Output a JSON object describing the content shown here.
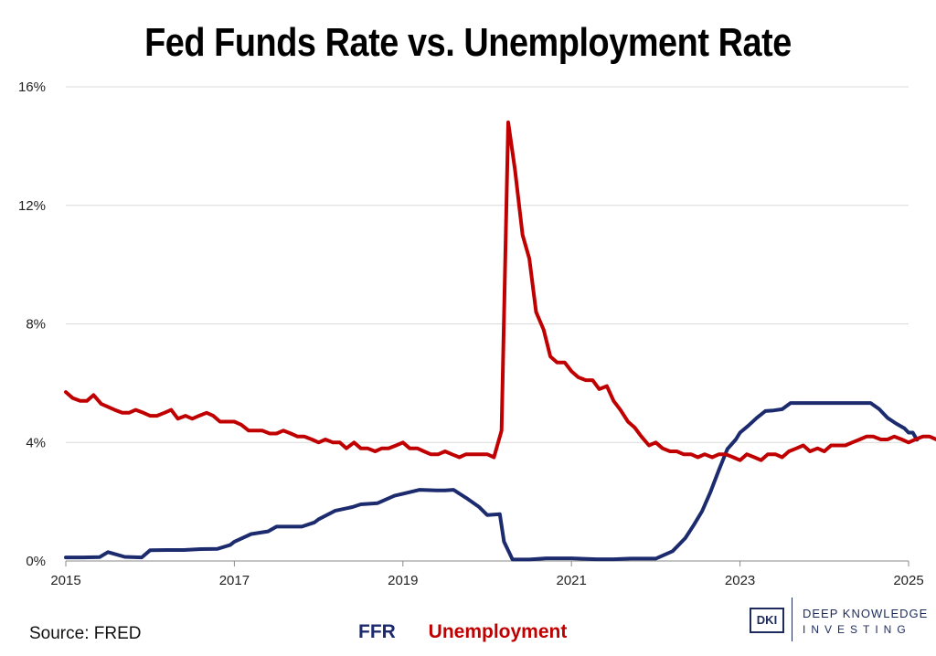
{
  "chart_data": {
    "type": "line",
    "title": "Fed Funds Rate vs. Unemployment Rate",
    "xlabel": "",
    "ylabel": "",
    "xlim": [
      2015,
      2025
    ],
    "ylim": [
      0,
      16
    ],
    "x_ticks": [
      2015,
      2017,
      2019,
      2021,
      2023,
      2025
    ],
    "y_ticks": [
      0,
      4,
      8,
      12,
      16
    ],
    "y_tick_labels": [
      "0%",
      "4%",
      "8%",
      "12%",
      "16%"
    ],
    "grid": "horizontal",
    "legend_position": "bottom-center",
    "series": [
      {
        "name": "FFR",
        "color": "#1c2a6e",
        "points": [
          [
            2015.0,
            0.12
          ],
          [
            2015.2,
            0.12
          ],
          [
            2015.4,
            0.13
          ],
          [
            2015.5,
            0.3
          ],
          [
            2015.7,
            0.14
          ],
          [
            2015.9,
            0.12
          ],
          [
            2016.0,
            0.36
          ],
          [
            2016.2,
            0.37
          ],
          [
            2016.4,
            0.37
          ],
          [
            2016.6,
            0.4
          ],
          [
            2016.8,
            0.41
          ],
          [
            2016.95,
            0.54
          ],
          [
            2017.0,
            0.65
          ],
          [
            2017.2,
            0.91
          ],
          [
            2017.4,
            1.0
          ],
          [
            2017.5,
            1.16
          ],
          [
            2017.8,
            1.16
          ],
          [
            2017.95,
            1.3
          ],
          [
            2018.0,
            1.41
          ],
          [
            2018.2,
            1.7
          ],
          [
            2018.4,
            1.82
          ],
          [
            2018.5,
            1.91
          ],
          [
            2018.7,
            1.95
          ],
          [
            2018.9,
            2.2
          ],
          [
            2019.0,
            2.27
          ],
          [
            2019.2,
            2.4
          ],
          [
            2019.4,
            2.38
          ],
          [
            2019.5,
            2.38
          ],
          [
            2019.6,
            2.4
          ],
          [
            2019.75,
            2.13
          ],
          [
            2019.9,
            1.83
          ],
          [
            2020.0,
            1.55
          ],
          [
            2020.15,
            1.58
          ],
          [
            2020.2,
            0.65
          ],
          [
            2020.3,
            0.05
          ],
          [
            2020.5,
            0.05
          ],
          [
            2020.7,
            0.09
          ],
          [
            2021.0,
            0.09
          ],
          [
            2021.3,
            0.06
          ],
          [
            2021.5,
            0.06
          ],
          [
            2021.7,
            0.08
          ],
          [
            2021.9,
            0.08
          ],
          [
            2022.0,
            0.08
          ],
          [
            2022.2,
            0.33
          ],
          [
            2022.35,
            0.77
          ],
          [
            2022.45,
            1.21
          ],
          [
            2022.55,
            1.68
          ],
          [
            2022.65,
            2.33
          ],
          [
            2022.75,
            3.08
          ],
          [
            2022.85,
            3.78
          ],
          [
            2022.95,
            4.1
          ],
          [
            2023.0,
            4.33
          ],
          [
            2023.1,
            4.57
          ],
          [
            2023.2,
            4.83
          ],
          [
            2023.3,
            5.06
          ],
          [
            2023.4,
            5.08
          ],
          [
            2023.5,
            5.12
          ],
          [
            2023.6,
            5.33
          ],
          [
            2023.8,
            5.33
          ],
          [
            2024.0,
            5.33
          ],
          [
            2024.2,
            5.33
          ],
          [
            2024.4,
            5.33
          ],
          [
            2024.55,
            5.33
          ],
          [
            2024.65,
            5.13
          ],
          [
            2024.75,
            4.83
          ],
          [
            2024.85,
            4.64
          ],
          [
            2024.95,
            4.48
          ],
          [
            2025.0,
            4.33
          ],
          [
            2025.05,
            4.33
          ],
          [
            2025.1,
            4.09
          ]
        ]
      },
      {
        "name": "Unemployment",
        "color": "#c00000",
        "points": [
          [
            2015.0,
            5.7
          ],
          [
            2015.08,
            5.5
          ],
          [
            2015.17,
            5.4
          ],
          [
            2015.25,
            5.4
          ],
          [
            2015.33,
            5.6
          ],
          [
            2015.42,
            5.3
          ],
          [
            2015.5,
            5.2
          ],
          [
            2015.58,
            5.1
          ],
          [
            2015.67,
            5.0
          ],
          [
            2015.75,
            5.0
          ],
          [
            2015.83,
            5.1
          ],
          [
            2015.92,
            5.0
          ],
          [
            2016.0,
            4.9
          ],
          [
            2016.08,
            4.9
          ],
          [
            2016.17,
            5.0
          ],
          [
            2016.25,
            5.1
          ],
          [
            2016.33,
            4.8
          ],
          [
            2016.42,
            4.9
          ],
          [
            2016.5,
            4.8
          ],
          [
            2016.58,
            4.9
          ],
          [
            2016.67,
            5.0
          ],
          [
            2016.75,
            4.9
          ],
          [
            2016.83,
            4.7
          ],
          [
            2016.92,
            4.7
          ],
          [
            2017.0,
            4.7
          ],
          [
            2017.08,
            4.6
          ],
          [
            2017.17,
            4.4
          ],
          [
            2017.25,
            4.4
          ],
          [
            2017.33,
            4.4
          ],
          [
            2017.42,
            4.3
          ],
          [
            2017.5,
            4.3
          ],
          [
            2017.58,
            4.4
          ],
          [
            2017.67,
            4.3
          ],
          [
            2017.75,
            4.2
          ],
          [
            2017.83,
            4.2
          ],
          [
            2017.92,
            4.1
          ],
          [
            2018.0,
            4.0
          ],
          [
            2018.08,
            4.1
          ],
          [
            2018.17,
            4.0
          ],
          [
            2018.25,
            4.0
          ],
          [
            2018.33,
            3.8
          ],
          [
            2018.42,
            4.0
          ],
          [
            2018.5,
            3.8
          ],
          [
            2018.58,
            3.8
          ],
          [
            2018.67,
            3.7
          ],
          [
            2018.75,
            3.8
          ],
          [
            2018.83,
            3.8
          ],
          [
            2018.92,
            3.9
          ],
          [
            2019.0,
            4.0
          ],
          [
            2019.08,
            3.8
          ],
          [
            2019.17,
            3.8
          ],
          [
            2019.25,
            3.7
          ],
          [
            2019.33,
            3.6
          ],
          [
            2019.42,
            3.6
          ],
          [
            2019.5,
            3.7
          ],
          [
            2019.58,
            3.6
          ],
          [
            2019.67,
            3.5
          ],
          [
            2019.75,
            3.6
          ],
          [
            2019.83,
            3.6
          ],
          [
            2019.92,
            3.6
          ],
          [
            2020.0,
            3.6
          ],
          [
            2020.08,
            3.5
          ],
          [
            2020.17,
            4.4
          ],
          [
            2020.25,
            14.8
          ],
          [
            2020.33,
            13.2
          ],
          [
            2020.42,
            11.0
          ],
          [
            2020.5,
            10.2
          ],
          [
            2020.58,
            8.4
          ],
          [
            2020.67,
            7.8
          ],
          [
            2020.75,
            6.9
          ],
          [
            2020.83,
            6.7
          ],
          [
            2020.92,
            6.7
          ],
          [
            2021.0,
            6.4
          ],
          [
            2021.08,
            6.2
          ],
          [
            2021.17,
            6.1
          ],
          [
            2021.25,
            6.1
          ],
          [
            2021.33,
            5.8
          ],
          [
            2021.42,
            5.9
          ],
          [
            2021.5,
            5.4
          ],
          [
            2021.58,
            5.1
          ],
          [
            2021.67,
            4.7
          ],
          [
            2021.75,
            4.5
          ],
          [
            2021.83,
            4.2
          ],
          [
            2021.92,
            3.9
          ],
          [
            2022.0,
            4.0
          ],
          [
            2022.08,
            3.8
          ],
          [
            2022.17,
            3.7
          ],
          [
            2022.25,
            3.7
          ],
          [
            2022.33,
            3.6
          ],
          [
            2022.42,
            3.6
          ],
          [
            2022.5,
            3.5
          ],
          [
            2022.58,
            3.6
          ],
          [
            2022.67,
            3.5
          ],
          [
            2022.75,
            3.6
          ],
          [
            2022.83,
            3.6
          ],
          [
            2022.92,
            3.5
          ],
          [
            2023.0,
            3.4
          ],
          [
            2023.08,
            3.6
          ],
          [
            2023.17,
            3.5
          ],
          [
            2023.25,
            3.4
          ],
          [
            2023.33,
            3.6
          ],
          [
            2023.42,
            3.6
          ],
          [
            2023.5,
            3.5
          ],
          [
            2023.58,
            3.7
          ],
          [
            2023.67,
            3.8
          ],
          [
            2023.75,
            3.9
          ],
          [
            2023.83,
            3.7
          ],
          [
            2023.92,
            3.8
          ],
          [
            2024.0,
            3.7
          ],
          [
            2024.08,
            3.9
          ],
          [
            2024.17,
            3.9
          ],
          [
            2024.25,
            3.9
          ],
          [
            2024.33,
            4.0
          ],
          [
            2024.42,
            4.1
          ],
          [
            2024.5,
            4.2
          ],
          [
            2024.58,
            4.2
          ],
          [
            2024.67,
            4.1
          ],
          [
            2024.75,
            4.1
          ],
          [
            2024.83,
            4.2
          ],
          [
            2024.92,
            4.1
          ],
          [
            2025.0,
            4.0
          ],
          [
            2025.08,
            4.1
          ],
          [
            2025.17,
            4.2
          ],
          [
            2025.25,
            4.2
          ],
          [
            2025.33,
            4.1
          ],
          [
            2025.42,
            4.2
          ],
          [
            2025.5,
            4.1
          ],
          [
            2025.58,
            4.3
          ]
        ]
      }
    ]
  },
  "source_note": "Source: FRED",
  "legend": {
    "ffr_label": "FFR",
    "unemployment_label": "Unemployment"
  },
  "logo": {
    "mark": "DKI",
    "line1": "DEEP KNOWLEDGE",
    "line2": "INVESTING"
  }
}
